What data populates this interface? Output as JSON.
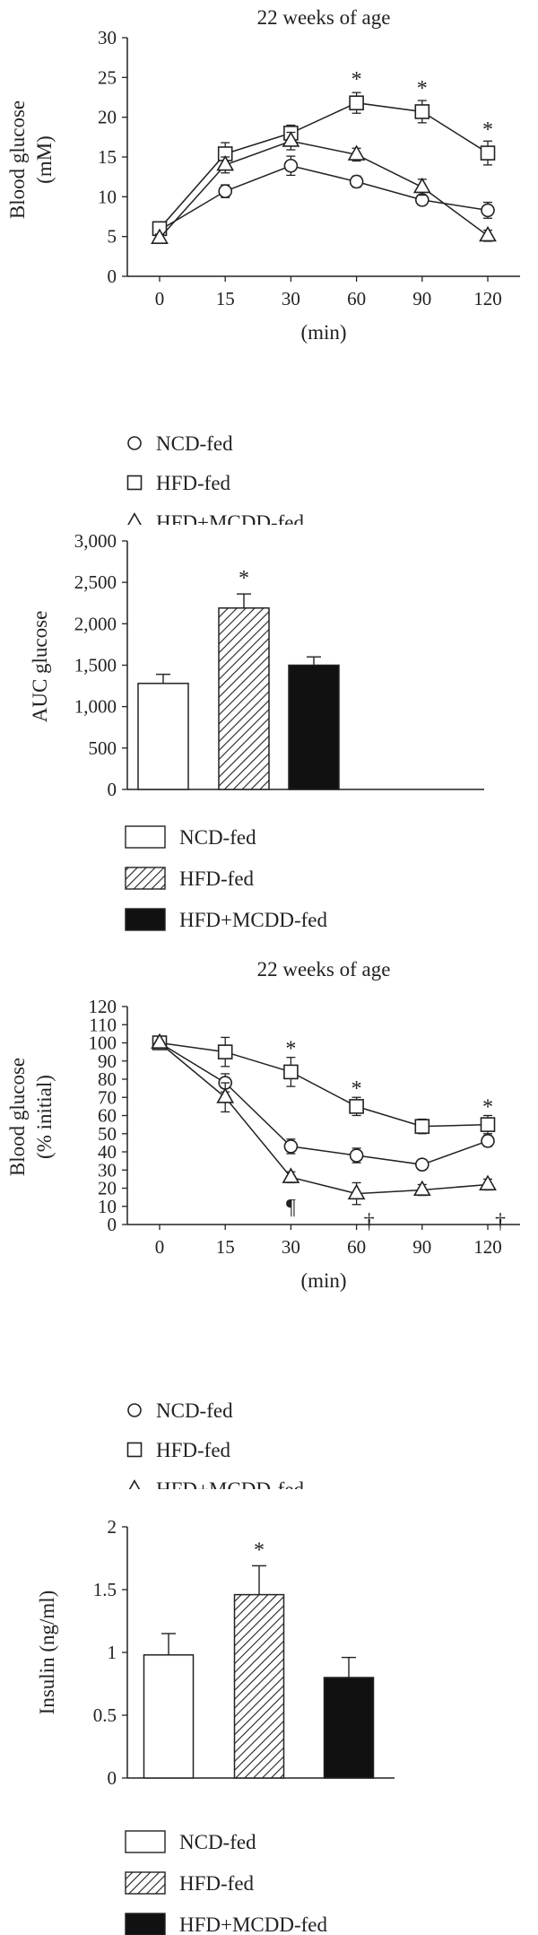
{
  "chart_data": [
    {
      "type": "line",
      "title": "22 weeks of age",
      "xlabel": "(min)",
      "ylabel": "Blood glucose\n(mM)",
      "x": [
        0,
        15,
        30,
        60,
        90,
        120
      ],
      "xticks": [
        "0",
        "15",
        "30",
        "60",
        "90",
        "120"
      ],
      "ylim": [
        0,
        30
      ],
      "yticks": [
        "0",
        "5",
        "10",
        "15",
        "20",
        "25",
        "30"
      ],
      "series": [
        {
          "name": "NCD-fed",
          "marker": "circle",
          "values": [
            5.8,
            10.7,
            13.9,
            11.9,
            9.6,
            8.3
          ],
          "errors": [
            0.5,
            0.8,
            1.2,
            0.7,
            0.5,
            1.0
          ]
        },
        {
          "name": "HFD-fed",
          "marker": "square",
          "values": [
            6.0,
            15.4,
            18.0,
            21.8,
            20.7,
            15.5
          ],
          "errors": [
            0.5,
            1.4,
            1.0,
            1.3,
            1.4,
            1.5
          ]
        },
        {
          "name": "HFD+MCDD-fed",
          "marker": "triangle",
          "values": [
            4.8,
            14.0,
            17.0,
            15.3,
            11.2,
            5.1
          ],
          "errors": [
            0.5,
            1.0,
            1.1,
            0.8,
            1.0,
            0.7
          ]
        }
      ],
      "annotations": [
        {
          "x": 60,
          "y": 24.8,
          "text": "*"
        },
        {
          "x": 90,
          "y": 23.7,
          "text": "*"
        },
        {
          "x": 120,
          "y": 18.5,
          "text": "*"
        }
      ],
      "legend": [
        "NCD-fed",
        "HFD-fed",
        "HFD+MCDD-fed"
      ],
      "grid": false
    },
    {
      "type": "bar",
      "ylabel": "AUC glucose",
      "categories": [
        "NCD-fed",
        "HFD-fed",
        "HFD+MCDD-fed"
      ],
      "values": [
        1280,
        2190,
        1500
      ],
      "errors": [
        110,
        170,
        100
      ],
      "ylim": [
        0,
        3000
      ],
      "yticks": [
        "0",
        "500",
        "1,000",
        "1,500",
        "2,000",
        "2,500",
        "3,000"
      ],
      "annotations": [
        {
          "category": "HFD-fed",
          "text": "*"
        }
      ],
      "legend": [
        "NCD-fed",
        "HFD-fed",
        "HFD+MCDD-fed"
      ],
      "grid": false
    },
    {
      "type": "line",
      "title": "22 weeks of age",
      "xlabel": "(min)",
      "ylabel": "Blood glucose\n(% initial)",
      "x": [
        0,
        15,
        30,
        60,
        90,
        120
      ],
      "xticks": [
        "0",
        "15",
        "30",
        "60",
        "90",
        "120"
      ],
      "ylim": [
        0,
        120
      ],
      "yticks": [
        "0",
        "10",
        "20",
        "30",
        "40",
        "50",
        "60",
        "70",
        "80",
        "90",
        "100",
        "110",
        "120"
      ],
      "series": [
        {
          "name": "NCD-fed",
          "marker": "circle",
          "values": [
            100,
            78,
            43,
            38,
            33,
            46
          ],
          "errors": [
            1,
            5,
            4,
            4,
            2,
            3
          ]
        },
        {
          "name": "HFD-fed",
          "marker": "square",
          "values": [
            100,
            95,
            84,
            65,
            54,
            55
          ],
          "errors": [
            1,
            8,
            8,
            5,
            4,
            5
          ]
        },
        {
          "name": "HFD+MCDD-fed",
          "marker": "triangle",
          "values": [
            100,
            70,
            26,
            17,
            19,
            22
          ],
          "errors": [
            1,
            8,
            3,
            6,
            3,
            3
          ]
        }
      ],
      "annotations": [
        {
          "x": 30,
          "y": 97,
          "text": "*"
        },
        {
          "x": 60,
          "y": 75,
          "text": "*"
        },
        {
          "x": 120,
          "y": 65,
          "text": "*"
        },
        {
          "x": 30,
          "y": 10,
          "text": "¶"
        },
        {
          "x": 60,
          "y": 2,
          "text": "†"
        },
        {
          "x": 120,
          "y": 2,
          "text": "†"
        }
      ],
      "legend": [
        "NCD-fed",
        "HFD-fed",
        "HFD+MCDD-fed"
      ],
      "grid": false
    },
    {
      "type": "bar",
      "ylabel": "Insulin (ng/ml)",
      "categories": [
        "NCD-fed",
        "HFD-fed",
        "HFD+MCDD-fed"
      ],
      "values": [
        0.98,
        1.46,
        0.8
      ],
      "errors": [
        0.17,
        0.23,
        0.16
      ],
      "ylim": [
        0,
        2
      ],
      "yticks": [
        "0",
        "0.5",
        "1",
        "1.5",
        "2"
      ],
      "annotations": [
        {
          "category": "HFD-fed",
          "text": "*"
        }
      ],
      "legend": [
        "NCD-fed",
        "HFD-fed",
        "HFD+MCDD-fed"
      ],
      "grid": false
    }
  ]
}
